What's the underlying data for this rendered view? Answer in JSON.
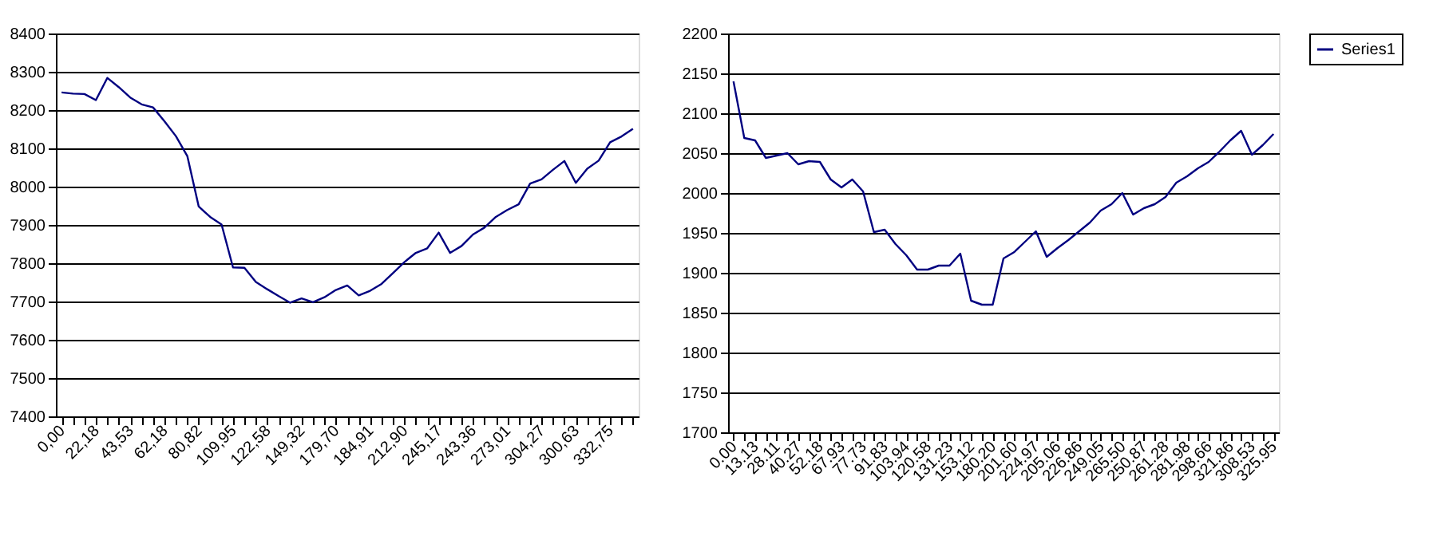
{
  "chart_data": [
    {
      "type": "line",
      "categories": [
        "0,00",
        null,
        null,
        "22,18",
        null,
        null,
        "43,53",
        null,
        null,
        "62,18",
        null,
        null,
        "80,82",
        null,
        null,
        "109,95",
        null,
        null,
        "122,58",
        null,
        null,
        "149,32",
        null,
        null,
        "179,70",
        null,
        null,
        "184,91",
        null,
        null,
        "212,90",
        null,
        null,
        "245,17",
        null,
        null,
        "243,36",
        null,
        null,
        "273,01",
        null,
        null,
        "304,27",
        null,
        null,
        "300,63",
        null,
        null,
        "332,75",
        null,
        null
      ],
      "series": [
        {
          "color": "#000080",
          "values": [
            8246,
            8243,
            8242,
            8226,
            8284,
            8260,
            8233,
            8215,
            8207,
            8171,
            8132,
            8080,
            7948,
            7921,
            7901,
            7789,
            7788,
            7751,
            7732,
            7714,
            7697,
            7708,
            7698,
            7711,
            7730,
            7742,
            7716,
            7728,
            7746,
            7774,
            7803,
            7827,
            7839,
            7880,
            7827,
            7845,
            7875,
            7893,
            7921,
            7939,
            7954,
            8008,
            8019,
            8044,
            8067,
            8010,
            8047,
            8068,
            8116,
            8131,
            8151
          ]
        }
      ],
      "ylim": [
        7400,
        8400
      ],
      "yticks": [
        7400,
        7500,
        7600,
        7700,
        7800,
        7900,
        8000,
        8100,
        8200,
        8300,
        8400
      ],
      "grid": "y",
      "legend": false
    },
    {
      "type": "line",
      "categories": [
        "0.00",
        null,
        "13.13",
        null,
        "28.11",
        null,
        "40.27",
        null,
        "52.18",
        null,
        "67.93",
        null,
        "77.73",
        null,
        "91.83",
        null,
        "103.94",
        null,
        "120.58",
        null,
        "131.23",
        null,
        "153.12",
        null,
        "180.20",
        null,
        "201.60",
        null,
        "224.97",
        null,
        "205.06",
        null,
        "226.86",
        null,
        "249.05",
        null,
        "265.50",
        null,
        "250.87",
        null,
        "261.28",
        null,
        "281.98",
        null,
        "298.66",
        null,
        "321.86",
        null,
        "308.53",
        null,
        "325.95"
      ],
      "series": [
        {
          "name": "Series1",
          "color": "#000080",
          "values": [
            2140,
            2069,
            2066,
            2044,
            2047,
            2050,
            2036,
            2040,
            2039,
            2017,
            2007,
            2017,
            2002,
            1951,
            1954,
            1936,
            1922,
            1904,
            1904,
            1909,
            1909,
            1924,
            1865,
            1860,
            1860,
            1918,
            1926,
            1939,
            1952,
            1920,
            1931,
            1941,
            1952,
            1963,
            1978,
            1986,
            2000,
            1973,
            1981,
            1986,
            1995,
            2013,
            2021,
            2031,
            2039,
            2052,
            2066,
            2078,
            2048,
            2060,
            2074
          ]
        }
      ],
      "ylim": [
        1700,
        2200
      ],
      "yticks": [
        1700,
        1750,
        1800,
        1850,
        1900,
        1950,
        2000,
        2050,
        2100,
        2150,
        2200
      ],
      "grid": "y",
      "legend": "right"
    }
  ]
}
